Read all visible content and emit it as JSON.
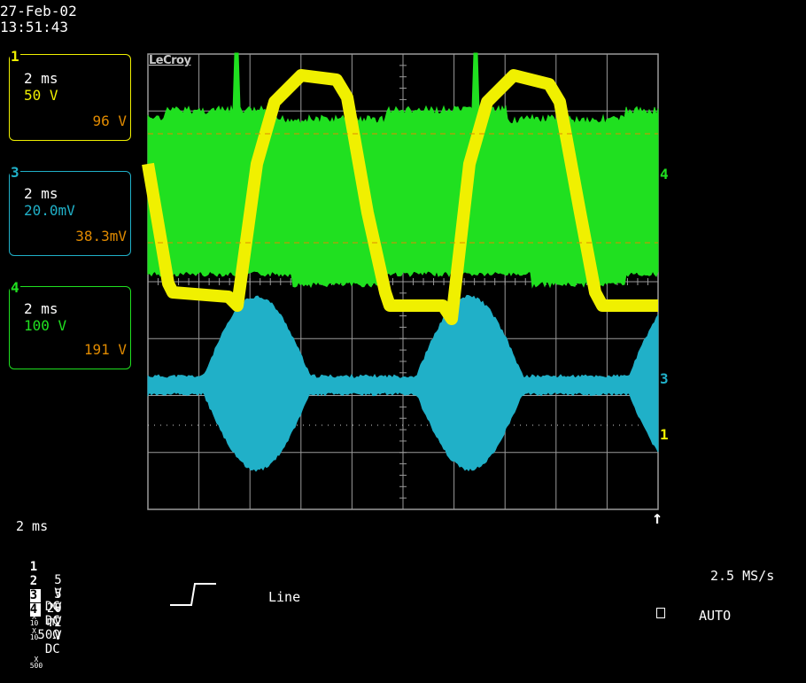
{
  "header": {
    "date": "27-Feb-02",
    "time": "13:51:43"
  },
  "brand": "LeCroy",
  "colors": {
    "ch1": "#f0f000",
    "ch3": "#20b0c8",
    "ch4": "#20e020",
    "orange": "#e08a00",
    "grid": "#9a9a9a"
  },
  "trace_boxes": [
    {
      "tag": "1",
      "timebase": "2 ms",
      "vdiv": "50 V",
      "measure": "96 V"
    },
    {
      "tag": "3",
      "timebase": "2 ms",
      "vdiv": "20.0mV",
      "measure": "38.3mV"
    },
    {
      "tag": "4",
      "timebase": "2 ms",
      "vdiv": "100 V",
      "measure": "191 V"
    }
  ],
  "markers": {
    "ch4": "4",
    "ch3": "3",
    "ch1": "1",
    "trigger": "↑"
  },
  "timebase": "2 ms",
  "channels": [
    {
      "num": "1",
      "volts": "5",
      "unit": "V",
      "coupling": "DC",
      "probe_top": "X",
      "probe_bot": "10"
    },
    {
      "num": "2",
      "volts": "5",
      "unit": "V",
      "coupling": "DC",
      "probe_top": "X",
      "probe_bot": "10"
    },
    {
      "num": "3",
      "volts": "20",
      "unit": "mV",
      "coupling": "50Ω",
      "probe_top": "",
      "probe_bot": ""
    },
    {
      "num": "4",
      "volts": ".2",
      "unit": "V",
      "coupling": "DC",
      "probe_top": "X",
      "probe_bot": "500"
    }
  ],
  "trigger": {
    "source": "Line",
    "mode": "AUTO"
  },
  "sample_rate": "2.5 MS/s"
}
